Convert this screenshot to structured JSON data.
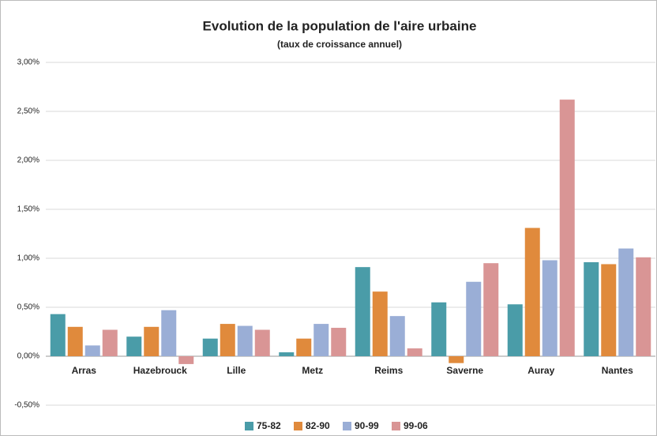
{
  "chart_data": {
    "type": "bar",
    "title": "Evolution de la population de l'aire urbaine",
    "subtitle": "(taux de croissance annuel)",
    "categories": [
      "Arras",
      "Hazebrouck",
      "Lille",
      "Metz",
      "Reims",
      "Saverne",
      "Auray",
      "Nantes"
    ],
    "series": [
      {
        "name": "75-82",
        "color": "#4a9ca8",
        "values": [
          0.43,
          0.2,
          0.18,
          0.04,
          0.91,
          0.55,
          0.53,
          0.96
        ]
      },
      {
        "name": "82-90",
        "color": "#e08a3c",
        "values": [
          0.3,
          0.3,
          0.33,
          0.18,
          0.66,
          -0.07,
          1.31,
          0.94
        ]
      },
      {
        "name": "90-99",
        "color": "#9aaed6",
        "values": [
          0.11,
          0.47,
          0.31,
          0.33,
          0.41,
          0.76,
          0.98,
          1.1
        ]
      },
      {
        "name": "99-06",
        "color": "#d99595",
        "values": [
          0.27,
          -0.08,
          0.27,
          0.29,
          0.08,
          0.95,
          2.62,
          1.01
        ]
      }
    ],
    "ylim": [
      -0.5,
      3
    ],
    "yticks": [
      {
        "value": -0.5,
        "label": "-0,50%"
      },
      {
        "value": 0,
        "label": "0,00%"
      },
      {
        "value": 0.5,
        "label": "0,50%"
      },
      {
        "value": 1,
        "label": "1,00%"
      },
      {
        "value": 1.5,
        "label": "1,50%"
      },
      {
        "value": 2,
        "label": "2,00%"
      },
      {
        "value": 2.5,
        "label": "2,50%"
      },
      {
        "value": 3,
        "label": "3,00%"
      }
    ],
    "grid": true,
    "legend": "bottom"
  }
}
